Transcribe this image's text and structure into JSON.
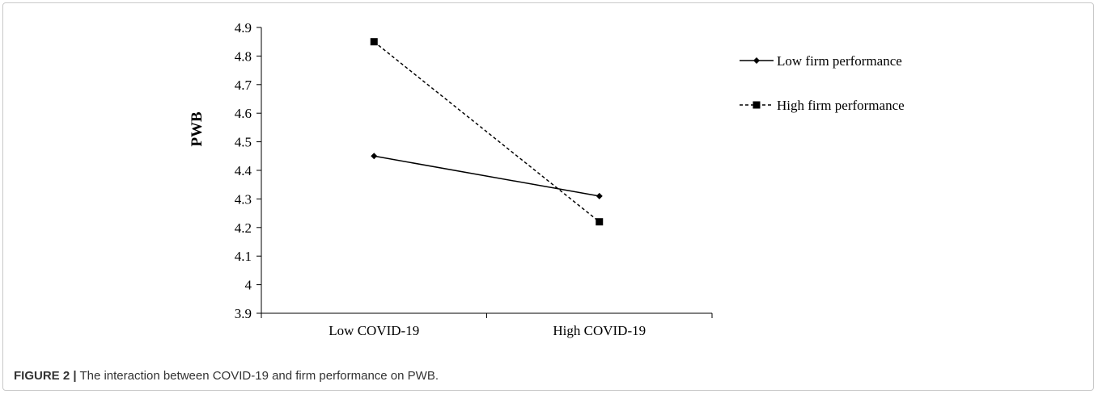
{
  "chart_data": {
    "type": "line",
    "categories": [
      "Low COVID-19",
      "High COVID-19"
    ],
    "ylabel": "PWB",
    "xlabel": "",
    "ylim": [
      3.9,
      4.9
    ],
    "yticks": [
      "3.9",
      "4",
      "4.1",
      "4.2",
      "4.3",
      "4.4",
      "4.5",
      "4.6",
      "4.7",
      "4.8",
      "4.9"
    ],
    "grid": false,
    "legend_position": "right",
    "series": [
      {
        "name": "Low firm performance",
        "values": [
          4.45,
          4.31
        ],
        "line_style": "solid",
        "marker": "diamond",
        "color": "#000000"
      },
      {
        "name": "High firm performance",
        "values": [
          4.85,
          4.22
        ],
        "line_style": "dashed",
        "marker": "square",
        "color": "#000000"
      }
    ]
  },
  "caption": {
    "label": "FIGURE 2 |",
    "text": "The interaction between COVID-19 and firm performance on PWB."
  }
}
